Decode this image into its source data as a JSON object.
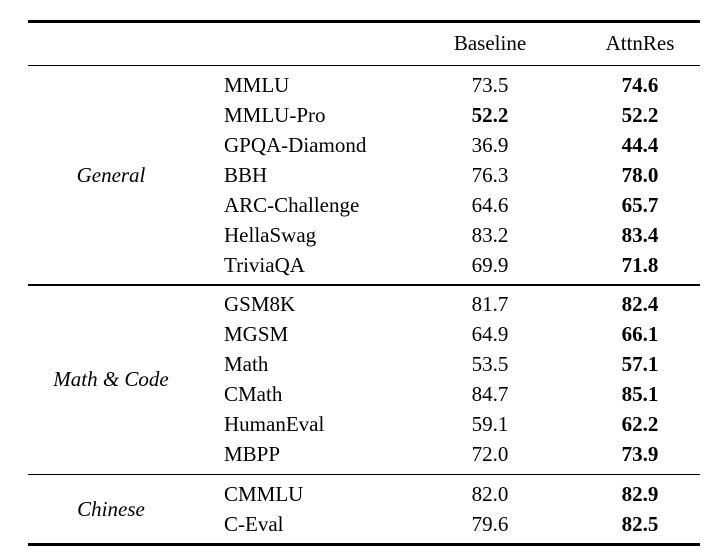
{
  "table": {
    "columns": {
      "baseline": "Baseline",
      "attnres": "AttnRes"
    },
    "groups": [
      {
        "label": "General",
        "rows": [
          {
            "name": "MMLU",
            "baseline": "73.5",
            "attnres": "74.6",
            "baseline_bold": false,
            "attnres_bold": true
          },
          {
            "name": "MMLU-Pro",
            "baseline": "52.2",
            "attnres": "52.2",
            "baseline_bold": true,
            "attnres_bold": true
          },
          {
            "name": "GPQA-Diamond",
            "baseline": "36.9",
            "attnres": "44.4",
            "baseline_bold": false,
            "attnres_bold": true
          },
          {
            "name": "BBH",
            "baseline": "76.3",
            "attnres": "78.0",
            "baseline_bold": false,
            "attnres_bold": true
          },
          {
            "name": "ARC-Challenge",
            "baseline": "64.6",
            "attnres": "65.7",
            "baseline_bold": false,
            "attnres_bold": true
          },
          {
            "name": "HellaSwag",
            "baseline": "83.2",
            "attnres": "83.4",
            "baseline_bold": false,
            "attnres_bold": true
          },
          {
            "name": "TriviaQA",
            "baseline": "69.9",
            "attnres": "71.8",
            "baseline_bold": false,
            "attnres_bold": true
          }
        ]
      },
      {
        "label": "Math & Code",
        "rows": [
          {
            "name": "GSM8K",
            "baseline": "81.7",
            "attnres": "82.4",
            "baseline_bold": false,
            "attnres_bold": true
          },
          {
            "name": "MGSM",
            "baseline": "64.9",
            "attnres": "66.1",
            "baseline_bold": false,
            "attnres_bold": true
          },
          {
            "name": "Math",
            "baseline": "53.5",
            "attnres": "57.1",
            "baseline_bold": false,
            "attnres_bold": true
          },
          {
            "name": "CMath",
            "baseline": "84.7",
            "attnres": "85.1",
            "baseline_bold": false,
            "attnres_bold": true
          },
          {
            "name": "HumanEval",
            "baseline": "59.1",
            "attnres": "62.2",
            "baseline_bold": false,
            "attnres_bold": true
          },
          {
            "name": "MBPP",
            "baseline": "72.0",
            "attnres": "73.9",
            "baseline_bold": false,
            "attnres_bold": true
          }
        ]
      },
      {
        "label": "Chinese",
        "rows": [
          {
            "name": "CMMLU",
            "baseline": "82.0",
            "attnres": "82.9",
            "baseline_bold": false,
            "attnres_bold": true
          },
          {
            "name": "C-Eval",
            "baseline": "79.6",
            "attnres": "82.5",
            "baseline_bold": false,
            "attnres_bold": true
          }
        ]
      }
    ],
    "colors": {
      "text": "#000000",
      "background": "#ffffff",
      "rule": "#000000"
    }
  }
}
